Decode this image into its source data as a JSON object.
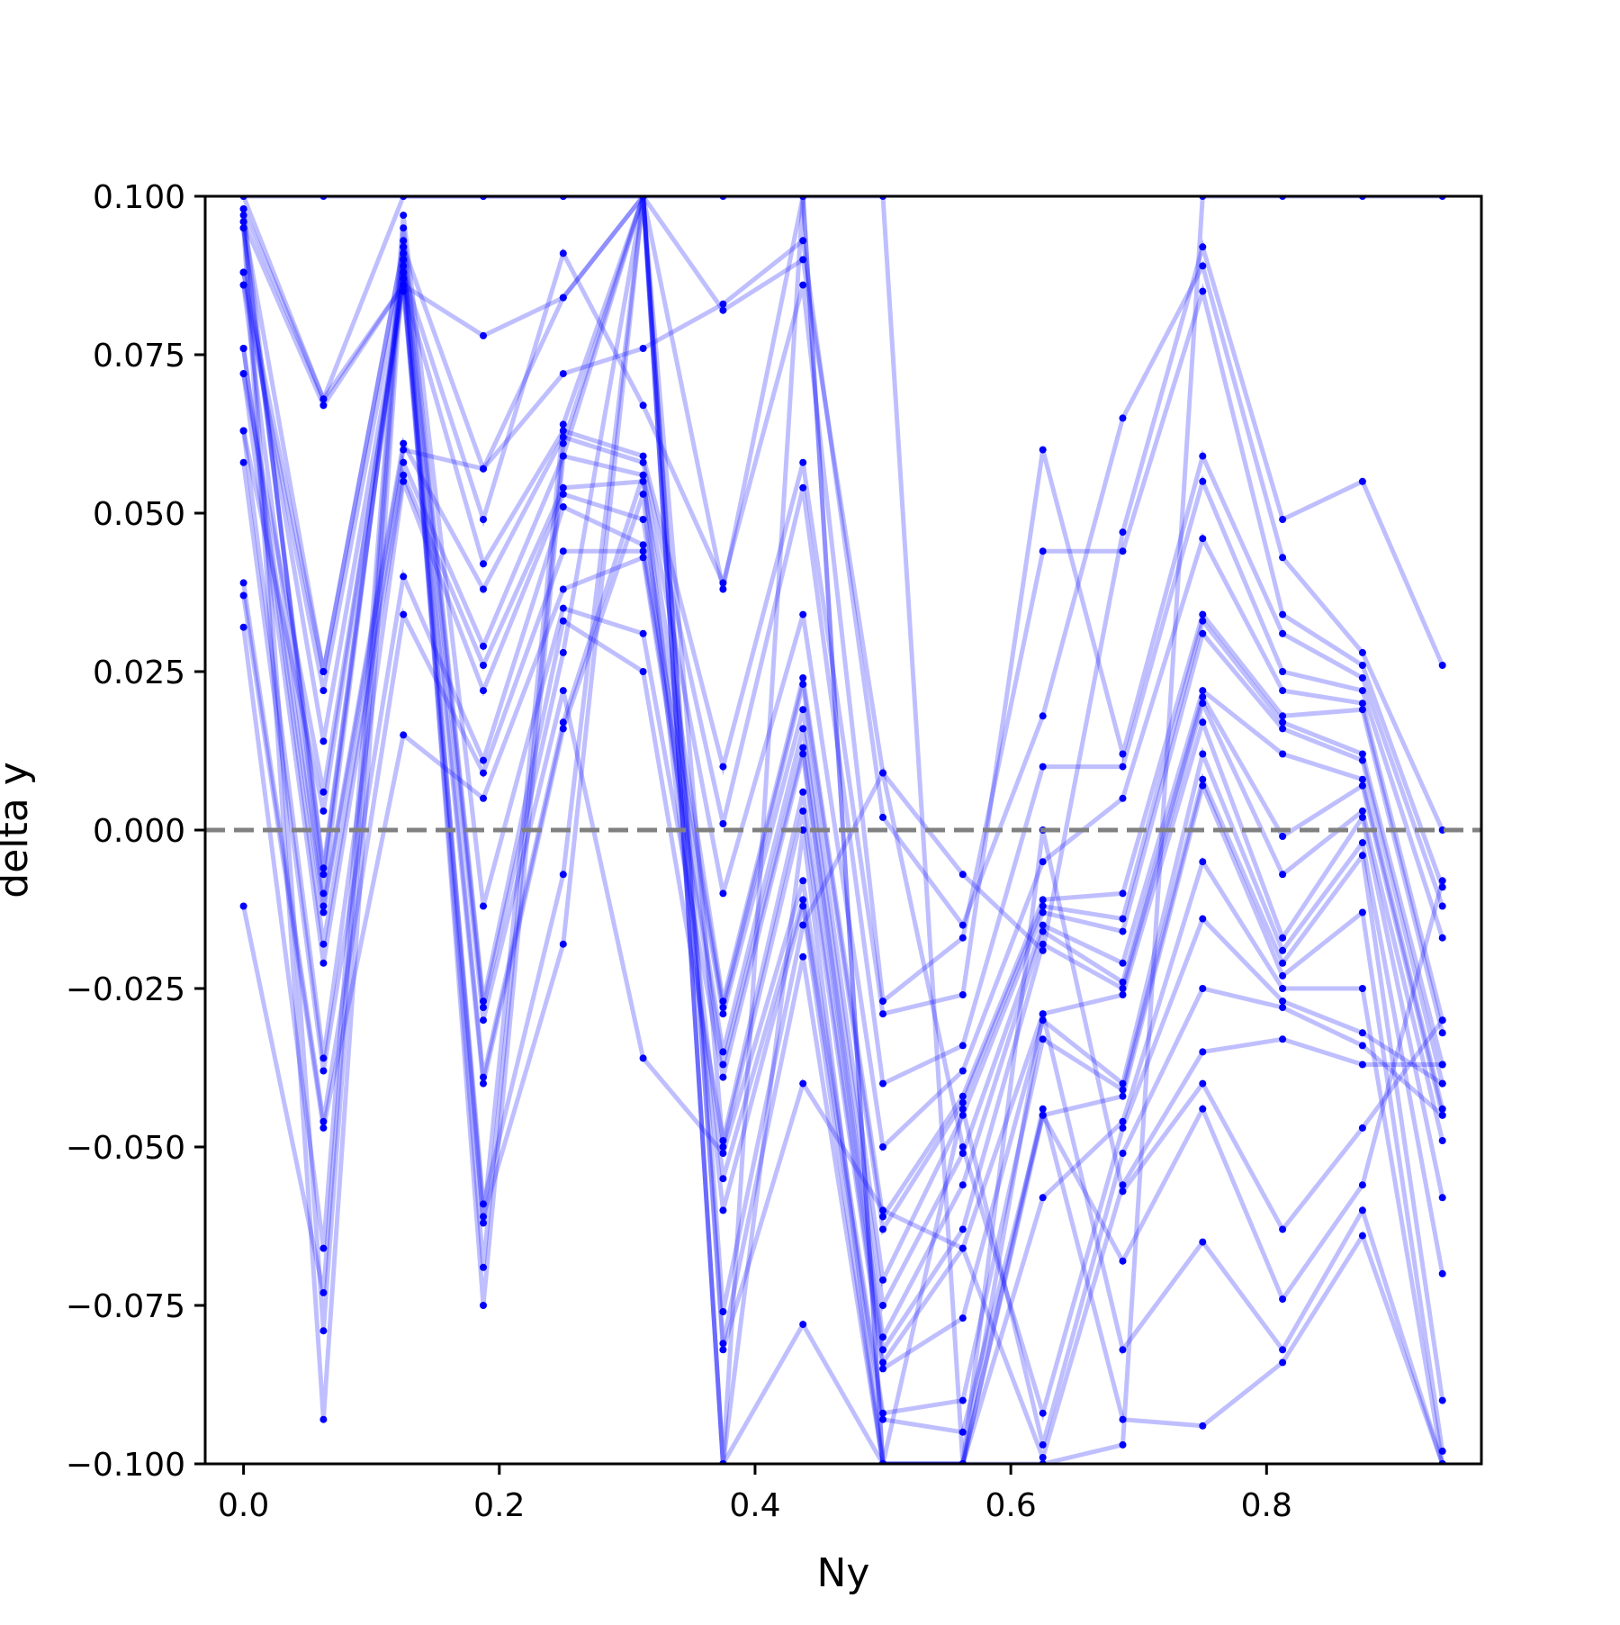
{
  "chart_data": {
    "type": "line",
    "xlabel": "Ny",
    "ylabel": "delta y",
    "xlim": [
      -0.03,
      0.968
    ],
    "ylim": [
      -0.1,
      0.1
    ],
    "x_ticks": [
      0.0,
      0.2,
      0.4,
      0.6,
      0.8
    ],
    "x_tick_labels": [
      "0.0",
      "0.2",
      "0.4",
      "0.6",
      "0.8"
    ],
    "y_ticks": [
      -0.1,
      -0.075,
      -0.05,
      -0.025,
      0.0,
      0.025,
      0.05,
      0.075,
      0.1
    ],
    "y_tick_labels": [
      "−0.100",
      "−0.075",
      "−0.050",
      "−0.025",
      "0.000",
      "0.025",
      "0.050",
      "0.075",
      "0.100"
    ],
    "grid": false,
    "reference_line": {
      "y": 0.0,
      "style": "dashed",
      "color": "#808080"
    },
    "series_color": "#0000ff",
    "x": [
      0.0,
      0.0625,
      0.125,
      0.1875,
      0.25,
      0.3125,
      0.375,
      0.4375,
      0.5,
      0.5625,
      0.625,
      0.6875,
      0.75,
      0.8125,
      0.875,
      0.9375
    ],
    "series": [
      {
        "values": [
          0.098,
          0.068,
          0.086,
          0.078,
          0.084,
          0.1,
          0.082,
          0.09,
          0.009,
          -0.007,
          -0.019,
          0.047,
          0.092,
          0.049,
          0.055,
          0.026
        ]
      },
      {
        "values": [
          0.096,
          0.025,
          0.092,
          0.057,
          0.072,
          0.076,
          0.083,
          0.093,
          0.002,
          -0.015,
          0.018,
          0.065,
          0.089,
          0.043,
          0.028,
          0.0
        ]
      },
      {
        "values": [
          0.095,
          -0.006,
          0.088,
          0.049,
          0.091,
          0.067,
          0.039,
          0.086,
          -0.027,
          -0.017,
          0.044,
          0.044,
          0.085,
          0.034,
          0.026,
          -0.009
        ]
      },
      {
        "values": [
          0.088,
          0.014,
          0.086,
          0.042,
          0.063,
          0.059,
          0.01,
          0.058,
          -0.029,
          -0.026,
          0.06,
          0.012,
          0.059,
          0.031,
          0.024,
          -0.012
        ]
      },
      {
        "values": [
          0.086,
          -0.012,
          0.061,
          0.038,
          0.062,
          0.058,
          0.001,
          0.054,
          -0.04,
          -0.034,
          0.01,
          0.01,
          0.055,
          0.025,
          0.022,
          -0.017
        ]
      },
      {
        "values": [
          0.076,
          -0.018,
          0.058,
          0.029,
          0.059,
          0.056,
          -0.01,
          0.034,
          -0.05,
          -0.038,
          -0.005,
          0.005,
          0.046,
          0.022,
          0.02,
          -0.03
        ]
      },
      {
        "values": [
          0.072,
          -0.021,
          0.056,
          0.026,
          0.054,
          0.055,
          -0.027,
          0.024,
          -0.061,
          -0.042,
          -0.011,
          -0.01,
          0.034,
          0.018,
          0.019,
          -0.032
        ]
      },
      {
        "values": [
          0.063,
          -0.036,
          0.055,
          0.022,
          0.053,
          0.049,
          -0.028,
          0.023,
          -0.063,
          -0.043,
          -0.012,
          -0.014,
          0.033,
          0.017,
          0.012,
          -0.037
        ]
      },
      {
        "values": [
          0.058,
          -0.038,
          0.04,
          0.011,
          0.051,
          0.045,
          -0.029,
          0.019,
          -0.071,
          -0.045,
          -0.013,
          -0.016,
          0.031,
          0.016,
          0.011,
          -0.04
        ]
      },
      {
        "values": [
          0.039,
          -0.046,
          0.034,
          0.009,
          0.044,
          0.044,
          -0.035,
          0.016,
          -0.075,
          -0.051,
          -0.015,
          -0.021,
          0.022,
          0.012,
          0.008,
          -0.044
        ]
      },
      {
        "values": [
          0.037,
          -0.047,
          0.015,
          0.005,
          0.038,
          0.043,
          -0.037,
          0.013,
          -0.08,
          -0.056,
          -0.016,
          -0.024,
          0.021,
          -0.001,
          0.007,
          -0.045
        ]
      },
      {
        "values": [
          0.032,
          -0.066,
          0.097,
          -0.012,
          0.035,
          0.031,
          -0.039,
          0.012,
          -0.082,
          -0.063,
          -0.018,
          -0.025,
          0.02,
          -0.007,
          0.003,
          -0.049
        ]
      },
      {
        "values": [
          -0.012,
          -0.073,
          0.095,
          -0.027,
          0.033,
          0.025,
          -0.049,
          0.006,
          -0.084,
          -0.066,
          -0.029,
          -0.026,
          0.017,
          -0.017,
          0.002,
          -0.058
        ]
      },
      {
        "values": [
          0.097,
          -0.079,
          0.093,
          -0.028,
          0.028,
          0.1,
          -0.05,
          0.003,
          -0.085,
          -0.077,
          -0.03,
          -0.04,
          0.012,
          -0.019,
          -0.002,
          -0.07
        ]
      },
      {
        "values": [
          0.095,
          -0.093,
          0.091,
          -0.03,
          0.022,
          -0.036,
          -0.051,
          -0.008,
          -0.092,
          -0.09,
          -0.033,
          -0.041,
          0.008,
          -0.021,
          -0.004,
          -0.09
        ]
      },
      {
        "values": [
          0.086,
          0.022,
          0.089,
          -0.039,
          0.017,
          0.056,
          -0.055,
          -0.011,
          -0.093,
          -0.095,
          -0.045,
          -0.042,
          0.007,
          -0.023,
          -0.013,
          -0.098
        ]
      },
      {
        "values": [
          0.072,
          0.006,
          0.085,
          -0.04,
          0.016,
          0.053,
          -0.06,
          -0.012,
          -0.1,
          -0.1,
          -0.058,
          -0.046,
          -0.005,
          -0.025,
          -0.025,
          -0.1
        ]
      },
      {
        "values": [
          0.063,
          0.003,
          0.087,
          -0.059,
          -0.007,
          0.1,
          -0.076,
          -0.015,
          0.009,
          -0.05,
          -0.092,
          -0.047,
          -0.014,
          -0.027,
          -0.032,
          -0.04
        ]
      },
      {
        "values": [
          0.098,
          -0.01,
          0.09,
          -0.061,
          -0.018,
          0.1,
          -0.081,
          -0.02,
          -0.1,
          -0.044,
          -0.097,
          -0.051,
          -0.025,
          -0.028,
          -0.034,
          -0.045
        ]
      },
      {
        "values": [
          0.096,
          0.067,
          0.086,
          -0.062,
          0.064,
          0.1,
          -0.082,
          -0.04,
          -0.06,
          -0.066,
          -0.099,
          -0.056,
          -0.035,
          -0.033,
          -0.037,
          -0.037
        ]
      },
      {
        "values": [
          0.095,
          -0.007,
          0.088,
          -0.069,
          0.061,
          0.1,
          -0.1,
          -0.078,
          -0.1,
          -0.1,
          0.0,
          -0.057,
          -0.04,
          -0.063,
          -0.047,
          -0.03
        ]
      },
      {
        "values": [
          0.088,
          0.025,
          0.092,
          -0.075,
          0.059,
          0.1,
          -0.1,
          0.0,
          -0.1,
          -0.1,
          -0.045,
          -0.068,
          -0.044,
          -0.074,
          -0.056,
          -0.008
        ]
      },
      {
        "values": [
          0.076,
          -0.013,
          0.06,
          0.057,
          0.084,
          0.1,
          -0.1,
          0.1,
          0.1,
          -0.1,
          -0.029,
          -0.082,
          -0.065,
          -0.082,
          -0.06,
          -0.1
        ]
      },
      {
        "values": [
          0.1,
          0.068,
          0.1,
          0.1,
          0.1,
          0.1,
          0.038,
          0.1,
          -0.1,
          -0.1,
          -0.044,
          -0.093,
          -0.094,
          -0.084,
          -0.064,
          -0.1
        ]
      },
      {
        "values": [
          0.1,
          0.1,
          0.1,
          0.1,
          0.1,
          0.1,
          0.1,
          0.1,
          -0.1,
          -0.1,
          -0.1,
          -0.097,
          0.1,
          0.1,
          0.1,
          0.1
        ]
      }
    ]
  }
}
